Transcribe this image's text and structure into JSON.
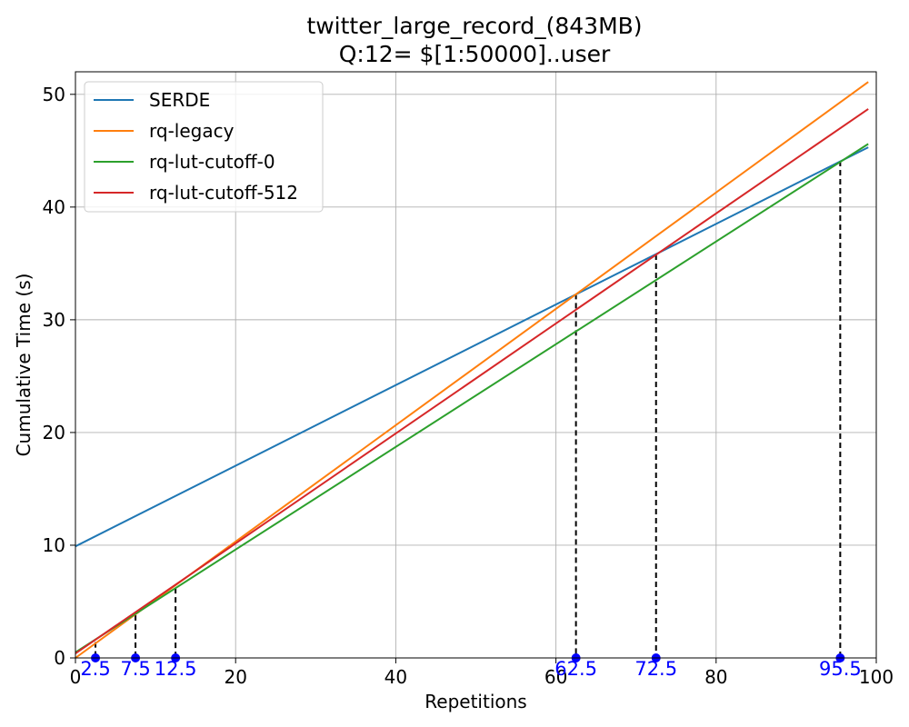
{
  "chart_data": {
    "type": "line",
    "title": [
      "twitter_large_record_(843MB)",
      "Q:12= $[1:50000]..user"
    ],
    "xlabel": "Repetitions",
    "ylabel": "Cumulative Time (s)",
    "xlim": [
      0,
      100
    ],
    "ylim": [
      0,
      52
    ],
    "xticks": [
      0,
      20,
      40,
      60,
      80,
      100
    ],
    "yticks": [
      0,
      10,
      20,
      30,
      40,
      50
    ],
    "grid": true,
    "legend_position": "top-left",
    "series": [
      {
        "name": "SERDE",
        "color": "#1f77b4",
        "x": [
          0,
          99
        ],
        "y": [
          9.9,
          45.3
        ]
      },
      {
        "name": "rq-legacy",
        "color": "#ff7f0e",
        "x": [
          0,
          99
        ],
        "y": [
          0.0,
          51.1
        ]
      },
      {
        "name": "rq-lut-cutoff-0",
        "color": "#2ca02c",
        "x": [
          0,
          99
        ],
        "y": [
          0.5,
          45.6
        ]
      },
      {
        "name": "rq-lut-cutoff-512",
        "color": "#d62728",
        "x": [
          0,
          99
        ],
        "y": [
          0.4,
          48.7
        ]
      }
    ],
    "crossovers": {
      "color": "#0000ff",
      "points": [
        {
          "x": 2.5,
          "y": 1.4,
          "label": "2.5"
        },
        {
          "x": 7.5,
          "y": 3.8,
          "label": "7.5"
        },
        {
          "x": 12.5,
          "y": 6.2,
          "label": "12.5"
        },
        {
          "x": 62.5,
          "y": 32.3,
          "label": "62.5"
        },
        {
          "x": 72.5,
          "y": 35.8,
          "label": "72.5"
        },
        {
          "x": 95.5,
          "y": 44.1,
          "label": "95.5"
        }
      ]
    }
  }
}
